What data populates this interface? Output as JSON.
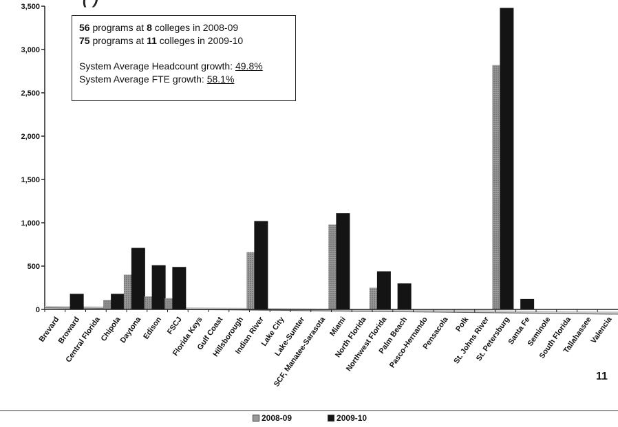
{
  "page": {
    "page_number": "11"
  },
  "info_box": {
    "line1_count": "56",
    "line1_rest": " programs at ",
    "line1_colleges": "8",
    "line1_tail": " colleges in 2008-09",
    "line2_count": "75",
    "line2_rest": " programs at ",
    "line2_colleges": "11",
    "line2_tail": " colleges in 2009-10",
    "headcount_label": "System Average Headcount growth:  ",
    "headcount_value": "49.8%",
    "fte_label": "System Average FTE growth: ",
    "fte_value": "58.1%"
  },
  "colors": {
    "series_2008": "#9a9a9a",
    "series_2009": "#141414",
    "axis": "#222222",
    "trend_2008": "#c8c8c8",
    "trend_2009": "#6a6a6a"
  },
  "chart_data": {
    "type": "bar",
    "ylim": [
      0,
      3500
    ],
    "yticks": [
      0,
      500,
      1000,
      1500,
      2000,
      2500,
      3000,
      3500
    ],
    "ytick_labels": [
      "0",
      "500",
      "1,000",
      "1,500",
      "2,000",
      "2,500",
      "3,000",
      "3,500"
    ],
    "categories": [
      "Brevard",
      "Broward",
      "Central Florida",
      "Chipola",
      "Daytona",
      "Edison",
      "FSCJ",
      "Florida Keys",
      "Gulf Coast",
      "Hillsborough",
      "Indian River",
      "Lake City",
      "Lake-Sumter",
      "SCF, Manatee-Sarasota",
      "Miami",
      "North Florida",
      "Northwest Florida",
      "Palm Beach",
      "Pasco-Hernando",
      "Pensacola",
      "Polk",
      "St. Johns River",
      "St. Petersburg",
      "Santa Fe",
      "Seminole",
      "South Florida",
      "Tallahassee",
      "Valencia"
    ],
    "series": [
      {
        "name": "2008-09",
        "values": [
          0,
          0,
          0,
          110,
          400,
          150,
          130,
          0,
          0,
          0,
          660,
          0,
          0,
          0,
          980,
          0,
          250,
          0,
          0,
          0,
          0,
          0,
          2820,
          0,
          0,
          0,
          0,
          0
        ]
      },
      {
        "name": "2009-10",
        "values": [
          0,
          180,
          0,
          180,
          710,
          510,
          490,
          0,
          0,
          0,
          1020,
          0,
          0,
          0,
          1110,
          0,
          440,
          300,
          0,
          0,
          0,
          0,
          3480,
          120,
          0,
          0,
          0,
          0
        ]
      }
    ],
    "trend_2008": [
      25,
      -40
    ],
    "trend_2009": [
      20,
      -55
    ],
    "legend_position": "bottom"
  }
}
